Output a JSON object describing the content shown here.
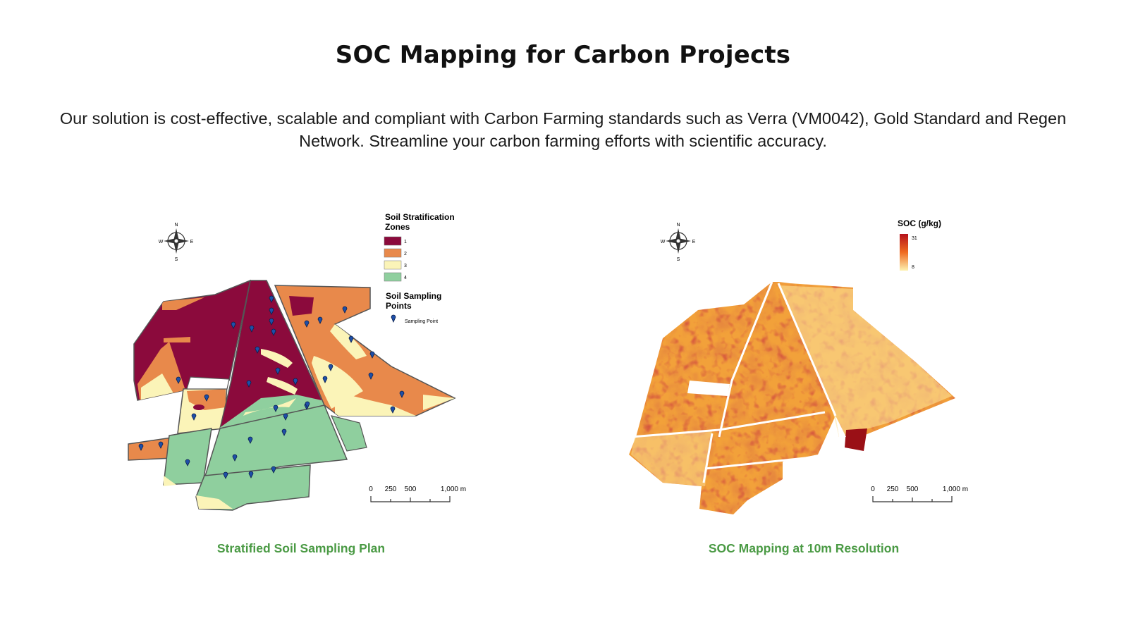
{
  "header": {
    "title": "SOC Mapping for Carbon Projects",
    "description": "Our solution is cost-effective, scalable and compliant with Carbon Farming standards such as Verra (VM0042), Gold Standard and Regen Network. Streamline your carbon farming efforts with scientific accuracy."
  },
  "left_map": {
    "caption": "Stratified Soil Sampling Plan",
    "legend_title_zones": "Soil Stratification Zones",
    "zones": [
      {
        "label": "1",
        "color": "#8b0a3c"
      },
      {
        "label": "2",
        "color": "#e8894b"
      },
      {
        "label": "3",
        "color": "#fbf4b8"
      },
      {
        "label": "4",
        "color": "#8fcf9e"
      }
    ],
    "legend_title_points": "Soil Sampling Points",
    "point_label": "Sampling Point",
    "compass": {
      "n": "N",
      "s": "S",
      "e": "E",
      "w": "W"
    },
    "scale": {
      "t0": "0",
      "t1": "250",
      "t2": "500",
      "t3": "1,000 m"
    }
  },
  "right_map": {
    "caption": "SOC Mapping at 10m Resolution",
    "legend_title": "SOC (g/kg)",
    "legend_max": "31",
    "legend_min": "8",
    "compass": {
      "n": "N",
      "s": "S",
      "e": "E",
      "w": "W"
    },
    "scale": {
      "t0": "0",
      "t1": "250",
      "t2": "500",
      "t3": "1,000 m"
    }
  }
}
